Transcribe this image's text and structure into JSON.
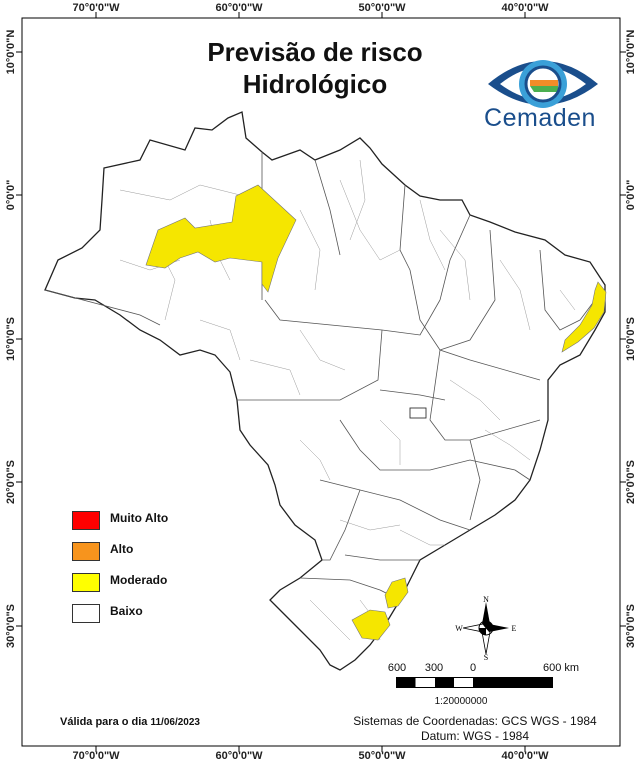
{
  "title_lines": [
    "Previsão de risco",
    "Hidrológico"
  ],
  "logo": {
    "text": "Cemaden",
    "colors": [
      "#1a4e8c",
      "#3aa0d8",
      "#f28c28",
      "#4caf50"
    ]
  },
  "graticule": {
    "top": [
      "70°0'0\"W",
      "60°0'0\"W",
      "50°0'0\"W",
      "40°0'0\"W"
    ],
    "bottom": [
      "70°0'0\"W",
      "60°0'0\"W",
      "50°0'0\"W",
      "40°0'0\"W"
    ],
    "left": [
      "10°0'0\"N",
      "0°0'0\"",
      "10°0'0\"S",
      "20°0'0\"S",
      "30°0'0\"S"
    ],
    "right": [
      "10°0'0\"N",
      "0°0'0\"",
      "10°0'0\"S",
      "20°0'0\"S",
      "30°0'0\"S"
    ]
  },
  "legend": [
    {
      "label": "Muito Alto",
      "color": "#ff0000"
    },
    {
      "label": "Alto",
      "color": "#f7941d"
    },
    {
      "label": "Moderado",
      "color": "#ffff00"
    },
    {
      "label": "Baixo",
      "color": "#ffffff"
    }
  ],
  "risk_colors": {
    "moderate": "#f5e600",
    "low": "#ffffff"
  },
  "compass": {
    "n": "N",
    "s": "S",
    "e": "E",
    "w": "W"
  },
  "scale": {
    "labels": [
      "600",
      "300",
      "0",
      "600 km"
    ],
    "ratio": "1:20000000"
  },
  "footer": {
    "valid_prefix": "Válida para o dia",
    "valid_date": "11/06/2023",
    "crs_line1": "Sistemas de Coordenadas: GCS WGS - 1984",
    "crs_line2": "Datum: WGS - 1984"
  }
}
